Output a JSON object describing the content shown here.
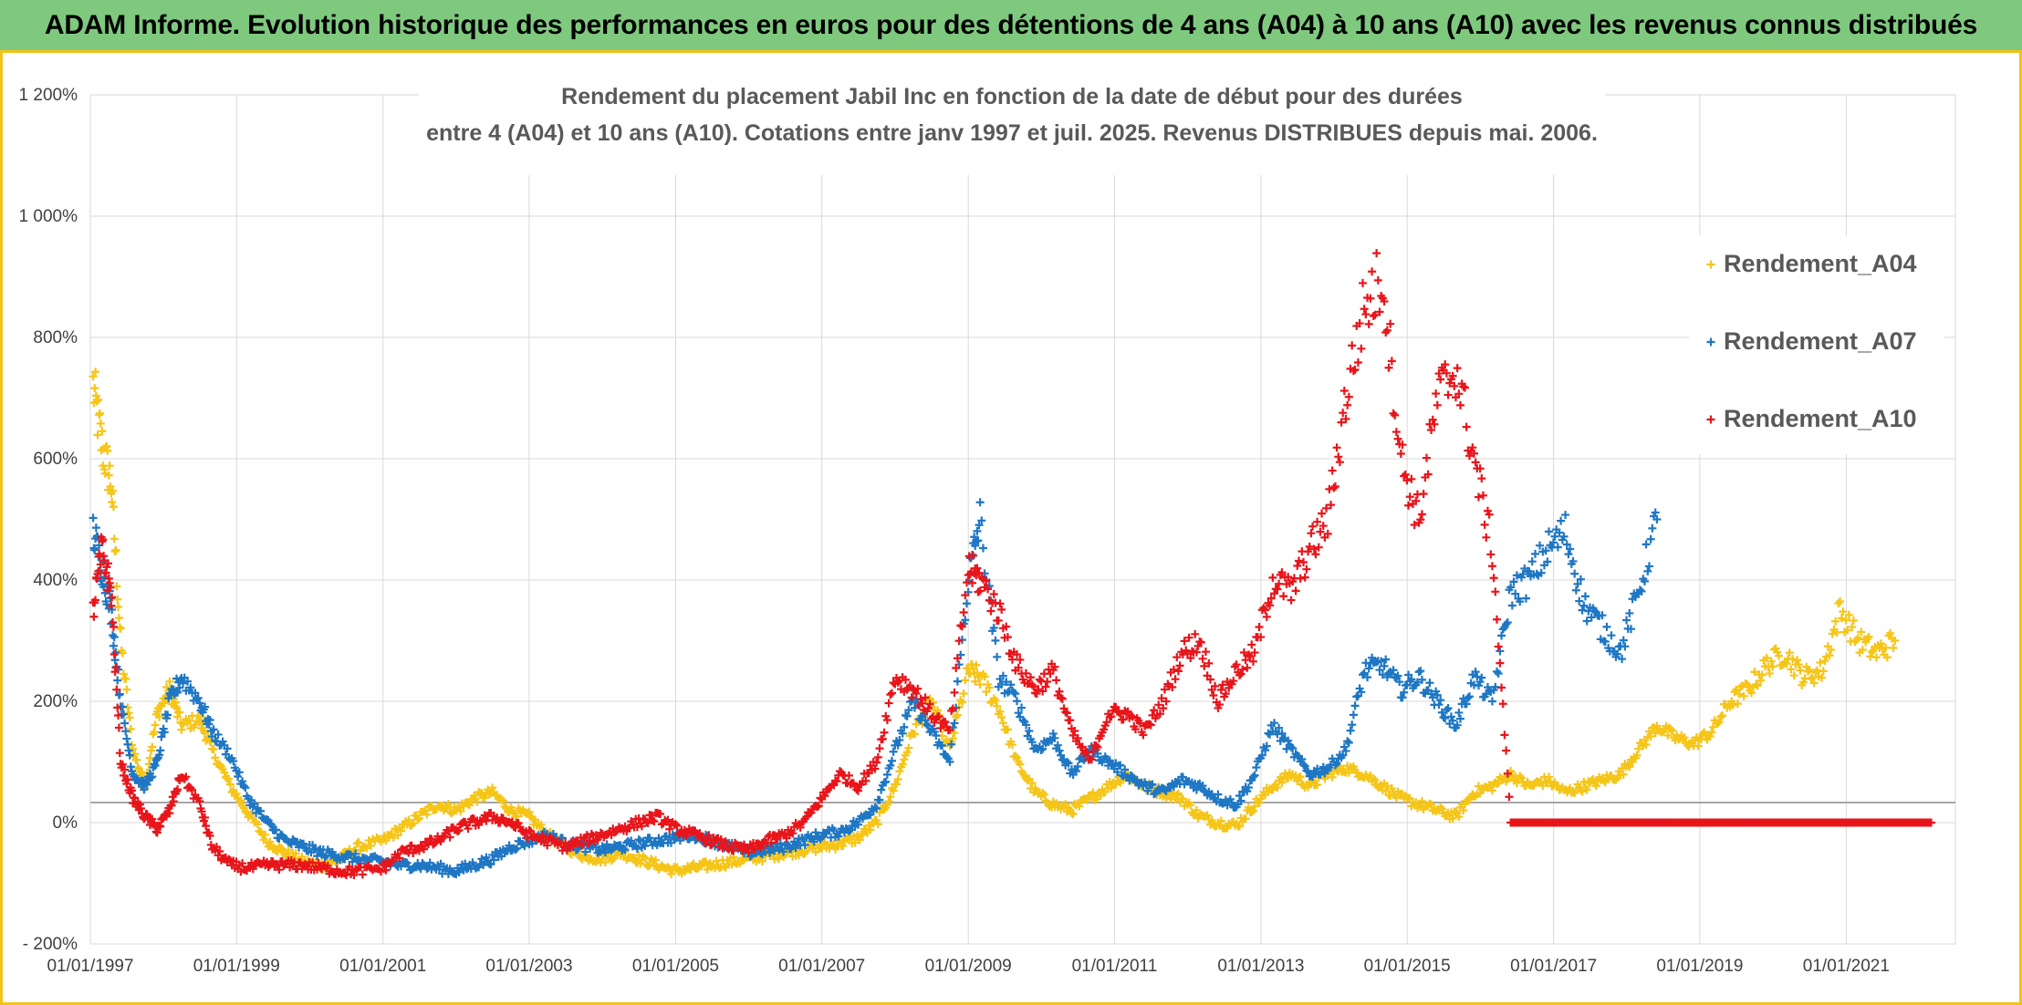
{
  "banner": {
    "title": "ADAM Informe. Evolution historique des performances en euros pour des détentions de 4 ans (A04) à 10 ans (A10) avec les revenus connus distribués"
  },
  "colors": {
    "banner_bg": "#7fc97f",
    "frame_border": "#f0c419",
    "A04": "#f5c518",
    "A07": "#1f77c4",
    "A10": "#e8151b"
  },
  "chart_data": {
    "type": "scatter",
    "title_lines": [
      "Rendement du placement Jabil Inc en fonction de la date de début pour des durées",
      "entre 4 (A04) et 10 ans (A10). Cotations entre janv 1997 et juil. 2025. Revenus DISTRIBUES depuis mai. 2006."
    ],
    "x_axis": {
      "type": "date",
      "range": [
        "1997-01-01",
        "2022-06-30"
      ],
      "tick_labels": [
        "01/01/1997",
        "01/01/1999",
        "01/01/2001",
        "01/01/2003",
        "01/01/2005",
        "01/01/2007",
        "01/01/2009",
        "01/01/2011",
        "01/01/2013",
        "01/01/2015",
        "01/01/2017",
        "01/01/2019",
        "01/01/2021"
      ]
    },
    "y_axis": {
      "unit": "%",
      "range": [
        -200,
        1200
      ],
      "ticks": [
        -200,
        0,
        200,
        400,
        600,
        800,
        1000,
        1200
      ],
      "tick_labels": [
        "- 200%",
        "0%",
        "200%",
        "400%",
        "600%",
        "800%",
        "1 000%",
        "1 200%"
      ]
    },
    "grid": true,
    "legend_position": "right",
    "marker": "+",
    "series": [
      {
        "name": "Rendement_A04",
        "color": "#f5c518",
        "x": [
          "1997-01-15",
          "1997-03-01",
          "1997-04-15",
          "1997-06-01",
          "1997-08-01",
          "1997-10-01",
          "1997-12-01",
          "1998-02-01",
          "1998-04-01",
          "1998-07-01",
          "1998-09-01",
          "1998-12-01",
          "1999-03-01",
          "1999-06-01",
          "1999-09-01",
          "1999-12-01",
          "2000-03-01",
          "2000-06-01",
          "2000-09-01",
          "2001-01-01",
          "2001-04-01",
          "2001-07-01",
          "2001-10-01",
          "2002-01-01",
          "2002-04-01",
          "2002-07-01",
          "2002-10-01",
          "2003-01-01",
          "2003-04-01",
          "2003-07-01",
          "2003-10-01",
          "2004-01-01",
          "2004-04-01",
          "2004-07-01",
          "2004-10-01",
          "2005-01-01",
          "2005-04-01",
          "2005-07-01",
          "2005-10-01",
          "2006-01-01",
          "2006-04-01",
          "2006-07-01",
          "2006-10-01",
          "2007-01-01",
          "2007-04-01",
          "2007-07-01",
          "2007-10-01",
          "2008-01-01",
          "2008-04-01",
          "2008-07-01",
          "2008-10-01",
          "2009-01-01",
          "2009-03-01",
          "2009-06-01",
          "2009-09-01",
          "2009-12-01",
          "2010-03-01",
          "2010-06-01",
          "2010-09-01",
          "2010-12-01",
          "2011-03-01",
          "2011-06-01",
          "2011-09-01",
          "2011-12-01",
          "2012-03-01",
          "2012-06-01",
          "2012-09-01",
          "2012-12-01",
          "2013-03-01",
          "2013-06-01",
          "2013-09-01",
          "2013-12-01",
          "2014-03-01",
          "2014-06-01",
          "2014-09-01",
          "2014-12-01",
          "2015-03-01",
          "2015-06-01",
          "2015-09-01",
          "2015-12-01",
          "2016-03-01",
          "2016-06-01",
          "2016-09-01",
          "2016-12-01",
          "2017-03-01",
          "2017-06-01",
          "2017-09-01",
          "2017-12-01",
          "2018-03-01",
          "2018-06-01",
          "2018-09-01",
          "2018-12-01",
          "2019-03-01",
          "2019-06-01",
          "2019-09-01",
          "2019-12-01",
          "2020-03-01",
          "2020-06-01",
          "2020-09-01",
          "2020-12-01",
          "2021-03-01",
          "2021-06-01",
          "2021-09-01"
        ],
        "y": [
          720,
          620,
          560,
          300,
          120,
          60,
          180,
          220,
          160,
          170,
          120,
          60,
          15,
          -30,
          -50,
          -65,
          -70,
          -60,
          -40,
          -30,
          -10,
          10,
          30,
          20,
          40,
          50,
          20,
          10,
          -20,
          -40,
          -55,
          -60,
          -50,
          -60,
          -70,
          -80,
          -75,
          -70,
          -65,
          -60,
          -55,
          -50,
          -45,
          -40,
          -35,
          -25,
          0,
          60,
          150,
          200,
          120,
          250,
          240,
          190,
          100,
          50,
          30,
          20,
          40,
          60,
          80,
          60,
          50,
          40,
          10,
          0,
          -5,
          30,
          60,
          80,
          60,
          80,
          90,
          80,
          60,
          40,
          30,
          20,
          10,
          50,
          60,
          80,
          60,
          70,
          50,
          60,
          70,
          80,
          120,
          160,
          140,
          130,
          150,
          200,
          220,
          260,
          280,
          240,
          250,
          350,
          300,
          280,
          300
        ]
      },
      {
        "name": "Rendement_A07",
        "color": "#1f77c4",
        "x": [
          "1997-01-15",
          "1997-03-01",
          "1997-04-15",
          "1997-06-01",
          "1997-08-01",
          "1997-10-01",
          "1997-12-01",
          "1998-02-01",
          "1998-04-01",
          "1998-07-01",
          "1998-09-01",
          "1998-12-01",
          "1999-03-01",
          "1999-06-01",
          "1999-09-01",
          "1999-12-01",
          "2000-03-01",
          "2000-06-01",
          "2000-09-01",
          "2001-01-01",
          "2001-04-01",
          "2001-07-01",
          "2001-10-01",
          "2002-01-01",
          "2002-04-01",
          "2002-07-01",
          "2002-10-01",
          "2003-01-01",
          "2003-04-01",
          "2003-07-01",
          "2003-10-01",
          "2004-01-01",
          "2004-04-01",
          "2004-07-01",
          "2004-10-01",
          "2005-01-01",
          "2005-04-01",
          "2005-07-01",
          "2005-10-01",
          "2006-01-01",
          "2006-04-01",
          "2006-07-01",
          "2006-10-01",
          "2007-01-01",
          "2007-04-01",
          "2007-07-01",
          "2007-10-01",
          "2008-01-01",
          "2008-04-01",
          "2008-07-01",
          "2008-10-01",
          "2009-01-01",
          "2009-03-01",
          "2009-06-01",
          "2009-09-01",
          "2009-12-01",
          "2010-03-01",
          "2010-06-01",
          "2010-09-01",
          "2010-12-01",
          "2011-03-01",
          "2011-06-01",
          "2011-09-01",
          "2011-12-01",
          "2012-03-01",
          "2012-06-01",
          "2012-09-01",
          "2012-12-01",
          "2013-03-01",
          "2013-06-01",
          "2013-09-01",
          "2013-12-01",
          "2014-03-01",
          "2014-06-01",
          "2014-09-01",
          "2014-12-01",
          "2015-03-01",
          "2015-06-01",
          "2015-09-01",
          "2015-12-01",
          "2016-03-01",
          "2016-06-01",
          "2016-09-01",
          "2016-12-01",
          "2017-03-01",
          "2017-06-01",
          "2017-09-01",
          "2017-12-01",
          "2018-03-01",
          "2018-06-01"
        ],
        "y": [
          480,
          420,
          350,
          200,
          80,
          60,
          100,
          200,
          240,
          200,
          150,
          110,
          40,
          0,
          -30,
          -40,
          -50,
          -55,
          -60,
          -65,
          -70,
          -70,
          -75,
          -80,
          -70,
          -60,
          -40,
          -30,
          -20,
          -35,
          -40,
          -45,
          -40,
          -35,
          -30,
          -25,
          -20,
          -30,
          -40,
          -50,
          -45,
          -40,
          -30,
          -20,
          -15,
          0,
          30,
          120,
          200,
          150,
          100,
          400,
          500,
          240,
          200,
          120,
          140,
          80,
          120,
          100,
          80,
          60,
          50,
          70,
          60,
          40,
          30,
          80,
          160,
          120,
          80,
          90,
          120,
          250,
          260,
          220,
          240,
          200,
          160,
          240,
          200,
          380,
          400,
          450,
          480,
          360,
          320,
          280,
          380,
          500
        ]
      },
      {
        "name": "Rendement_A10",
        "color": "#e8151b",
        "x": [
          "1997-01-15",
          "1997-03-01",
          "1997-04-15",
          "1997-06-01",
          "1997-08-01",
          "1997-10-01",
          "1997-12-01",
          "1998-02-01",
          "1998-04-01",
          "1998-07-01",
          "1998-09-01",
          "1998-12-01",
          "1999-03-01",
          "1999-06-01",
          "1999-09-01",
          "1999-12-01",
          "2000-03-01",
          "2000-06-01",
          "2000-09-01",
          "2001-01-01",
          "2001-04-01",
          "2001-07-01",
          "2001-10-01",
          "2002-01-01",
          "2002-04-01",
          "2002-07-01",
          "2002-10-01",
          "2003-01-01",
          "2003-04-01",
          "2003-07-01",
          "2003-10-01",
          "2004-01-01",
          "2004-04-01",
          "2004-07-01",
          "2004-10-01",
          "2005-01-01",
          "2005-04-01",
          "2005-07-01",
          "2005-10-01",
          "2006-01-01",
          "2006-04-01",
          "2006-07-01",
          "2006-10-01",
          "2007-01-01",
          "2007-04-01",
          "2007-07-01",
          "2007-10-01",
          "2008-01-01",
          "2008-04-01",
          "2008-07-01",
          "2008-10-01",
          "2009-01-01",
          "2009-03-01",
          "2009-06-01",
          "2009-09-01",
          "2009-12-01",
          "2010-03-01",
          "2010-06-01",
          "2010-09-01",
          "2010-12-01",
          "2011-03-01",
          "2011-06-01",
          "2011-09-01",
          "2011-12-01",
          "2012-03-01",
          "2012-06-01",
          "2012-09-01",
          "2012-12-01",
          "2013-03-01",
          "2013-06-01",
          "2013-09-01",
          "2013-12-01",
          "2014-03-01",
          "2014-06-01",
          "2014-09-01",
          "2014-12-01",
          "2015-03-01",
          "2015-06-01",
          "2015-09-01",
          "2015-12-01",
          "2016-03-01",
          "2016-06-01",
          "2016-09-01",
          "2016-12-01",
          "2017-03-01",
          "2017-06-01",
          "2017-09-01",
          "2017-12-01",
          "2018-03-01",
          "2018-06-01",
          "2018-09-01",
          "2018-12-01",
          "2019-03-01",
          "2019-06-01",
          "2019-09-01",
          "2019-12-01",
          "2020-03-01",
          "2020-06-01",
          "2020-09-01",
          "2020-12-01",
          "2021-03-01",
          "2021-06-01",
          "2021-09-01",
          "2021-12-01",
          "2022-03-01"
        ],
        "y": [
          350,
          450,
          380,
          100,
          40,
          10,
          -10,
          20,
          80,
          30,
          -40,
          -70,
          -75,
          -70,
          -70,
          -70,
          -75,
          -80,
          -80,
          -75,
          -50,
          -40,
          -30,
          -10,
          0,
          10,
          0,
          -20,
          -30,
          -40,
          -30,
          -20,
          -10,
          0,
          10,
          -10,
          -20,
          -30,
          -40,
          -45,
          -30,
          -20,
          0,
          40,
          80,
          60,
          100,
          240,
          220,
          180,
          150,
          420,
          400,
          350,
          260,
          220,
          250,
          150,
          100,
          180,
          180,
          150,
          200,
          280,
          300,
          200,
          250,
          280,
          400,
          380,
          450,
          500,
          700,
          850,
          900,
          600,
          500,
          700,
          750,
          600,
          450,
          0,
          0,
          0,
          0,
          0,
          0,
          0,
          0,
          0,
          0,
          0,
          0,
          0,
          0,
          0,
          0,
          0,
          0,
          0,
          0,
          0,
          0,
          0,
          0
        ]
      }
    ]
  }
}
